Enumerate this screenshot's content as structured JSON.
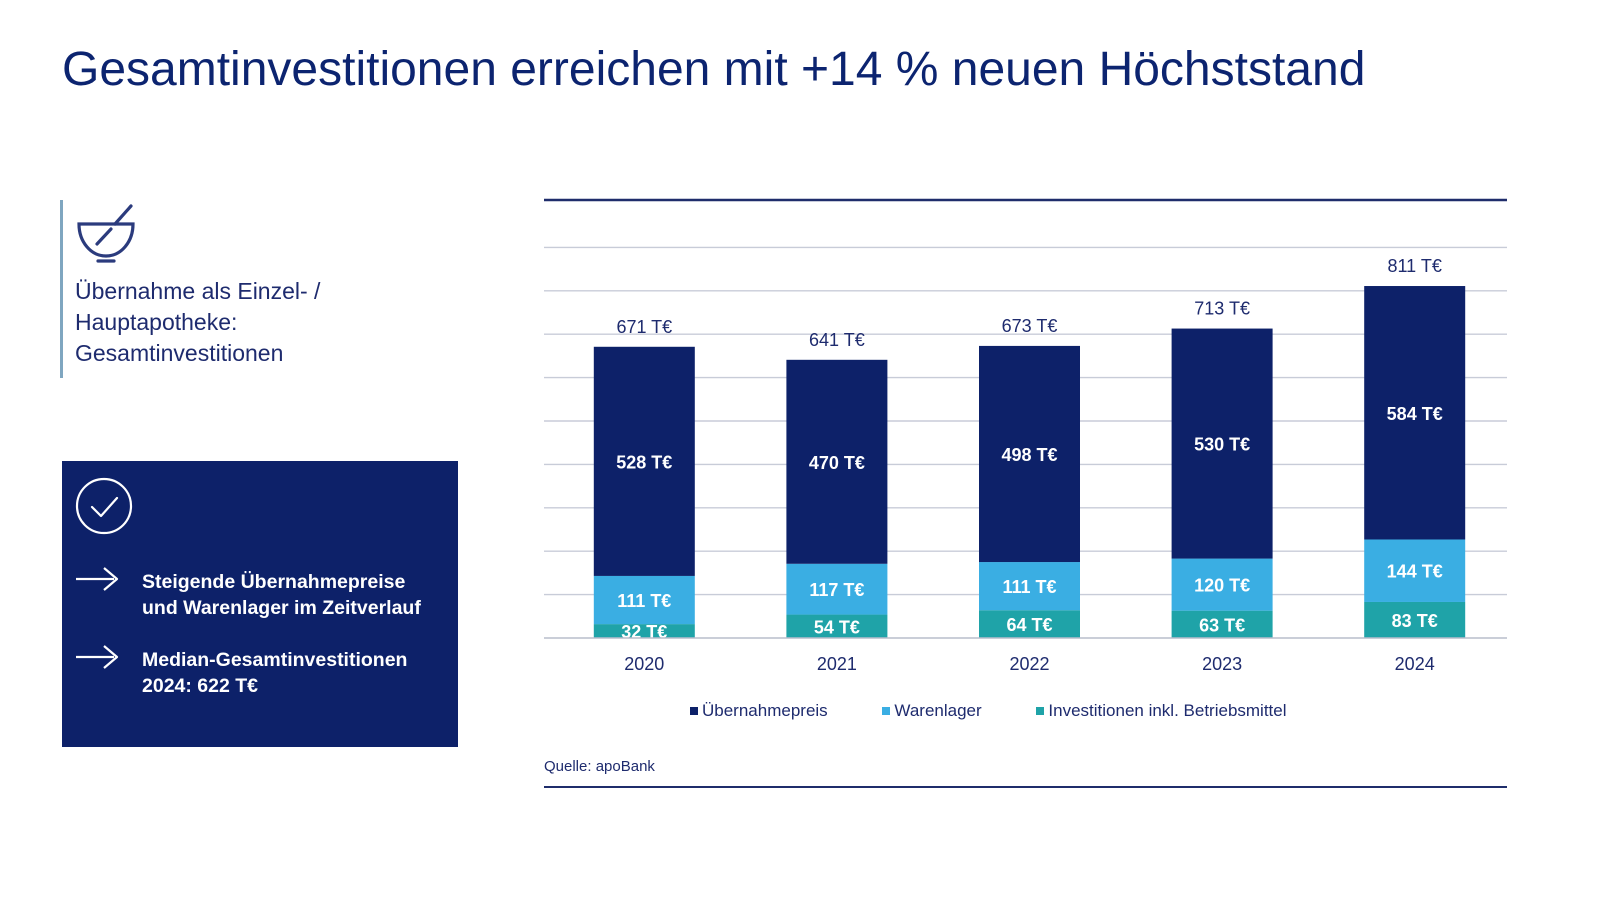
{
  "page": {
    "title": "Gesamtinvestitionen erreichen mit +14 % neuen Höchststand"
  },
  "side_info": {
    "icon": "mortar-pestle-icon",
    "subtitle": "Übernahme als Einzel- /\nHauptapotheke:\nGesamtinvestitionen"
  },
  "callout": {
    "icon": "check-circle-icon",
    "bullets": [
      {
        "icon": "arrow-right-icon",
        "text": "Steigende Übernahmepreise\nund Warenlager im Zeitverlauf"
      },
      {
        "icon": "arrow-right-icon",
        "text": "Median-Gesamtinvestitionen\n2024: 622 T€"
      }
    ]
  },
  "colors": {
    "primary_navy": "#0d2169",
    "light_blue": "#3aaee3",
    "teal": "#1fa3a8",
    "grid": "#c8ccd8",
    "axis_dark": "#1f2d6b"
  },
  "chart_data": {
    "type": "bar",
    "stacked": true,
    "title": "",
    "xlabel": "",
    "ylabel": "",
    "unit": "T€",
    "ylim": [
      0,
      1000
    ],
    "grid": true,
    "y_axis_labels_visible": false,
    "categories": [
      "2020",
      "2021",
      "2022",
      "2023",
      "2024"
    ],
    "series": [
      {
        "name": "Investitionen inkl. Betriebsmittel",
        "color": "#1fa3a8",
        "values": [
          32,
          54,
          64,
          63,
          83
        ]
      },
      {
        "name": "Warenlager",
        "color": "#3aaee3",
        "values": [
          111,
          117,
          111,
          120,
          144
        ]
      },
      {
        "name": "Übernahmepreis",
        "color": "#0d2169",
        "values": [
          528,
          470,
          498,
          530,
          584
        ]
      }
    ],
    "totals": [
      671,
      641,
      673,
      713,
      811
    ],
    "data_label_suffix": " T€",
    "legend": {
      "placement": "bottom",
      "entries": [
        {
          "label": "Übernahmepreis",
          "color": "#0d2169"
        },
        {
          "label": "Warenlager",
          "color": "#3aaee3"
        },
        {
          "label": "Investitionen inkl. Betriebsmittel",
          "color": "#1fa3a8"
        }
      ]
    },
    "source": "Quelle: apoBank"
  }
}
